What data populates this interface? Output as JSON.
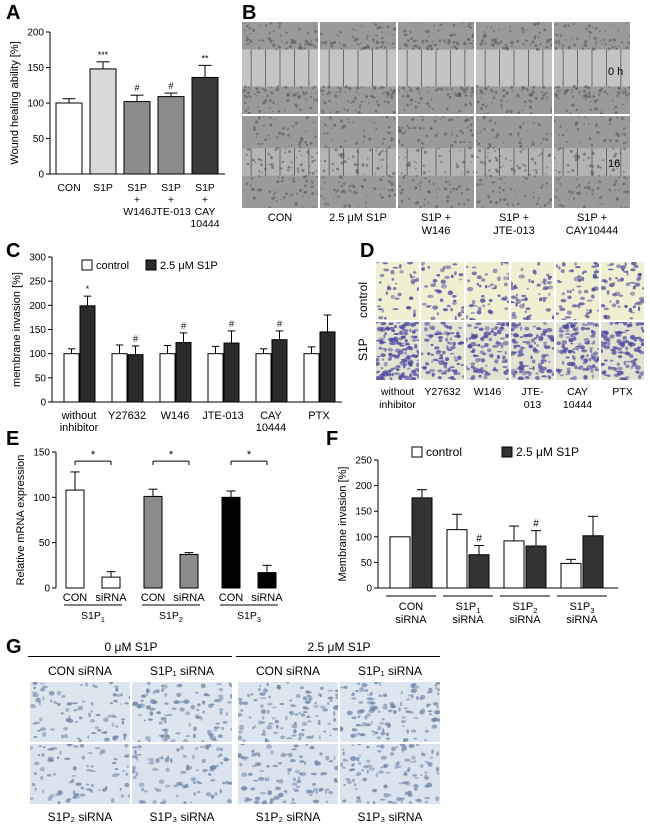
{
  "panels": {
    "A": "A",
    "B": "B",
    "C": "C",
    "D": "D",
    "E": "E",
    "F": "F",
    "G": "G"
  },
  "panelB": {
    "time_labels": [
      "0 h",
      "16"
    ],
    "columns": [
      "CON",
      "2.5 μM S1P",
      "S1P +\nW146",
      "S1P +\nJTE-013",
      "S1P +\nCAY10444"
    ]
  },
  "panelD": {
    "row_labels": [
      "control",
      "S1P"
    ],
    "columns": [
      "without\ninhibitor",
      "Y27632",
      "W146",
      "JTE-\n013",
      "CAY\n10444",
      "PTX"
    ]
  },
  "panelG": {
    "groups": [
      "0 μM S1P",
      "2.5 μM S1P"
    ],
    "top_labels": [
      "CON siRNA",
      "S1P₁ siRNA",
      "CON siRNA",
      "S1P₁ siRNA"
    ],
    "bottom_labels": [
      "S1P₂ siRNA",
      "S1P₃ siRNA",
      "S1P₂ siRNA",
      "S1P₃ siRNA"
    ]
  },
  "chart_data": [
    {
      "id": "A",
      "type": "bar",
      "ylabel": "Wound healing ability [%]",
      "ylim": [
        0,
        200
      ],
      "yticks": [
        0,
        50,
        100,
        150,
        200
      ],
      "categories": [
        "CON",
        "S1P",
        "S1P\n+\nW146",
        "S1P\n+\nJTE-013",
        "S1P\n+\nCAY\n10444"
      ],
      "values": [
        100,
        148,
        102,
        109,
        136
      ],
      "errors": [
        6,
        10,
        9,
        5,
        17
      ],
      "colors": [
        "#ffffff",
        "#d9d9d9",
        "#8c8c8c",
        "#8c8c8c",
        "#3b3b3b"
      ],
      "annotations": [
        "",
        "***",
        "#",
        "#",
        "**"
      ]
    },
    {
      "id": "C",
      "type": "bar",
      "ylabel": "membrane invasion [%]",
      "ylim": [
        0,
        300
      ],
      "yticks": [
        0,
        50,
        100,
        150,
        200,
        250,
        300
      ],
      "legend": [
        "control",
        "2.5 μM S1P"
      ],
      "categories": [
        "without\ninhibitor",
        "Y27632",
        "W146",
        "JTE-013",
        "CAY\n10444",
        "PTX"
      ],
      "series": [
        {
          "name": "control",
          "values": [
            100,
            100,
            100,
            100,
            100,
            100
          ],
          "errors": [
            10,
            18,
            17,
            15,
            10,
            14
          ],
          "color": "#ffffff"
        },
        {
          "name": "2.5 μM S1P",
          "values": [
            199,
            98,
            123,
            122,
            129,
            145
          ],
          "errors": [
            20,
            18,
            20,
            25,
            18,
            35
          ],
          "color": "#2b2b2b"
        }
      ],
      "annotations": [
        "*",
        "#",
        "#",
        "#",
        "#",
        ""
      ]
    },
    {
      "id": "E",
      "type": "bar",
      "ylabel": "Relative mRNA expression",
      "ylim": [
        0,
        150
      ],
      "yticks": [
        0,
        50,
        100,
        150
      ],
      "bar_labels": [
        "CON",
        "siRNA",
        "CON",
        "siRNA",
        "CON",
        "siRNA"
      ],
      "groups": [
        "S1P1",
        "S1P2",
        "S1P3"
      ],
      "values": [
        108,
        12,
        101,
        37,
        100,
        17
      ],
      "errors": [
        20,
        6,
        8,
        2,
        7,
        8
      ],
      "colors": [
        "#ffffff",
        "#ffffff",
        "#8c8c8c",
        "#8c8c8c",
        "#000000",
        "#000000"
      ],
      "significance": [
        "*",
        "*",
        "*"
      ]
    },
    {
      "id": "F",
      "type": "bar",
      "ylabel": "Membrane invasion [%]",
      "ylim": [
        0,
        250
      ],
      "yticks": [
        0,
        50,
        100,
        150,
        200,
        250
      ],
      "legend": [
        "control",
        "2.5 μM S1P"
      ],
      "categories": [
        "CON\nsiRNA",
        "S1P1\nsiRNA",
        "S1P2\nsiRNA",
        "S1P3\nsiRNA"
      ],
      "series": [
        {
          "name": "control",
          "values": [
            100,
            114,
            92,
            48
          ],
          "errors": [
            0,
            30,
            29,
            8
          ],
          "color": "#ffffff"
        },
        {
          "name": "2.5 μM S1P",
          "values": [
            176,
            65,
            82,
            102
          ],
          "errors": [
            16,
            18,
            30,
            38
          ],
          "color": "#333333"
        }
      ],
      "annotations": [
        "",
        "#",
        "#",
        ""
      ]
    }
  ]
}
